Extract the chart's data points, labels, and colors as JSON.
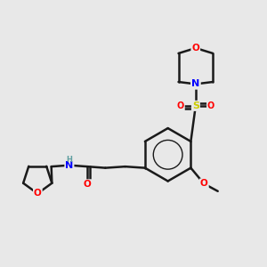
{
  "background_color": "#e8e8e8",
  "bond_color": "#1a1a1a",
  "atom_colors": {
    "O": "#ff0000",
    "N": "#0000ff",
    "S": "#cccc00",
    "C": "#1a1a1a",
    "H": "#5f9ea0"
  },
  "figsize": [
    3.0,
    3.0
  ],
  "dpi": 100
}
